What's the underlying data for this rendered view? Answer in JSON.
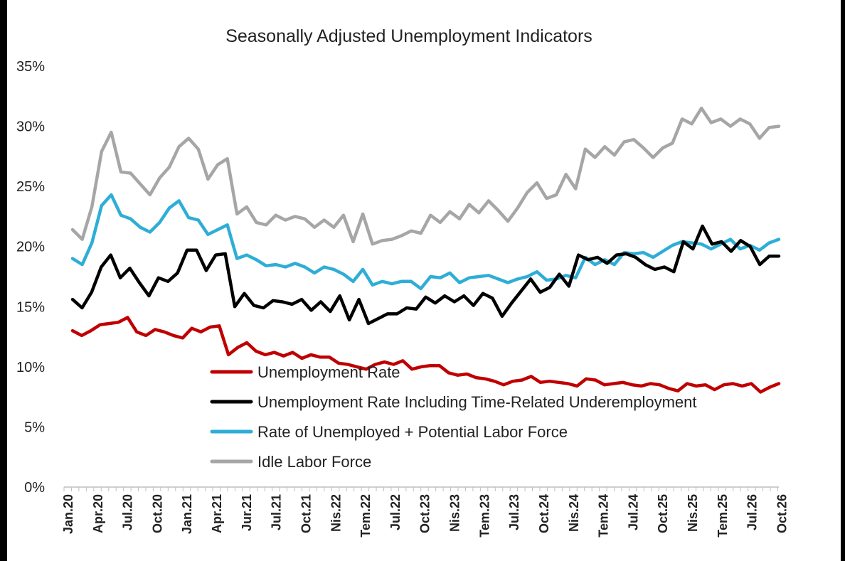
{
  "chart_data": {
    "type": "line",
    "title": "Seasonally Adjusted Unemployment Indicators",
    "xlabel": "",
    "ylabel": "",
    "ylim": [
      0,
      35
    ],
    "y_ticks": [
      0,
      5,
      10,
      15,
      20,
      25,
      30,
      35
    ],
    "y_tick_labels": [
      "0%",
      "5%",
      "10%",
      "15%",
      "20%",
      "25%",
      "30%",
      "35%"
    ],
    "x_tick_labels": [
      "Jan.20",
      "Apr.20",
      "Jul.20",
      "Oct.20",
      "Jan.21",
      "Apr.21",
      "Jur.21",
      "Jul.21",
      "Oct.21",
      "Nis.22",
      "Tem.22",
      "Jul.22",
      "Oct.23",
      "Nis.23",
      "Tem.23",
      "Jul.23",
      "Oct.24",
      "Nis.24",
      "Tem.24",
      "Jul.24",
      "Oct.25",
      "Nis.25",
      "Tem.25",
      "Jul.26",
      "Oct.26"
    ],
    "grid": false,
    "legend_position": "bottom-center",
    "series": [
      {
        "name": "Unemployment Rate",
        "color": "#c00000",
        "values": [
          13.0,
          12.6,
          13.0,
          13.5,
          13.6,
          13.7,
          14.1,
          12.9,
          12.6,
          13.1,
          12.9,
          12.6,
          12.4,
          13.2,
          12.9,
          13.3,
          13.4,
          11.0,
          11.6,
          12.0,
          11.3,
          11.0,
          11.2,
          10.9,
          11.2,
          10.7,
          11.0,
          10.8,
          10.8,
          10.3,
          10.2,
          10.0,
          9.8,
          10.2,
          10.4,
          10.2,
          10.5,
          9.8,
          10.0,
          10.1,
          10.1,
          9.5,
          9.3,
          9.4,
          9.1,
          9.0,
          8.8,
          8.5,
          8.8,
          8.9,
          9.2,
          8.7,
          8.8,
          8.7,
          8.6,
          8.4,
          9.0,
          8.9,
          8.5,
          8.6,
          8.7,
          8.5,
          8.4,
          8.6,
          8.5,
          8.2,
          8.0,
          8.6,
          8.4,
          8.5,
          8.1,
          8.5,
          8.6,
          8.4,
          8.6,
          7.9,
          8.3,
          8.6
        ]
      },
      {
        "name": "Unemployment Rate Including Time-Related Underemployment",
        "color": "#000000",
        "values": [
          15.6,
          14.9,
          16.2,
          18.3,
          19.3,
          17.4,
          18.2,
          17.0,
          15.9,
          17.4,
          17.1,
          17.8,
          19.7,
          19.7,
          18.0,
          19.3,
          19.4,
          15.0,
          16.1,
          15.1,
          14.9,
          15.5,
          15.4,
          15.2,
          15.6,
          14.7,
          15.4,
          14.6,
          15.9,
          13.9,
          15.6,
          13.6,
          14.0,
          14.4,
          14.4,
          14.9,
          14.8,
          15.8,
          15.3,
          15.9,
          15.4,
          15.9,
          15.1,
          16.1,
          15.7,
          14.2,
          15.3,
          16.3,
          17.3,
          16.2,
          16.6,
          17.7,
          16.7,
          19.3,
          18.9,
          19.1,
          18.6,
          19.3,
          19.4,
          19.1,
          18.5,
          18.1,
          18.3,
          17.9,
          20.4,
          19.8,
          21.7,
          20.2,
          20.4,
          19.6,
          20.5,
          20.0,
          18.5,
          19.2,
          19.2
        ]
      },
      {
        "name": "Rate of Unemployed + Potential Labor Force",
        "color": "#2eaed6",
        "values": [
          19.0,
          18.5,
          20.3,
          23.4,
          24.3,
          22.6,
          22.3,
          21.6,
          21.2,
          22.0,
          23.2,
          23.8,
          22.4,
          22.2,
          21.0,
          21.4,
          21.8,
          19.0,
          19.3,
          18.9,
          18.4,
          18.5,
          18.3,
          18.6,
          18.3,
          17.8,
          18.3,
          18.1,
          17.7,
          17.1,
          18.1,
          16.8,
          17.1,
          16.9,
          17.1,
          17.1,
          16.5,
          17.5,
          17.4,
          17.8,
          17.0,
          17.4,
          17.5,
          17.6,
          17.3,
          17.0,
          17.3,
          17.5,
          17.9,
          17.2,
          17.3,
          17.6,
          17.4,
          19.1,
          18.5,
          18.9,
          18.5,
          19.5,
          19.4,
          19.5,
          19.1,
          19.6,
          20.1,
          20.4,
          20.3,
          20.2,
          19.8,
          20.2,
          20.6,
          19.8,
          20.1,
          19.7,
          20.3,
          20.6
        ]
      },
      {
        "name": "Idle Labor Force",
        "color": "#a6a6a6",
        "values": [
          21.4,
          20.6,
          23.3,
          27.9,
          29.5,
          26.2,
          26.1,
          25.2,
          24.3,
          25.7,
          26.6,
          28.3,
          29.0,
          28.1,
          25.6,
          26.8,
          27.3,
          22.7,
          23.3,
          22.0,
          21.8,
          22.6,
          22.2,
          22.5,
          22.3,
          21.6,
          22.2,
          21.6,
          22.6,
          20.4,
          22.7,
          20.2,
          20.5,
          20.6,
          20.9,
          21.3,
          21.1,
          22.6,
          22.0,
          22.9,
          22.3,
          23.5,
          22.8,
          23.8,
          23.0,
          22.1,
          23.2,
          24.5,
          25.3,
          24.0,
          24.3,
          26.0,
          24.8,
          28.1,
          27.4,
          28.3,
          27.6,
          28.7,
          28.9,
          28.2,
          27.4,
          28.2,
          28.6,
          30.6,
          30.2,
          31.5,
          30.3,
          30.6,
          30.0,
          30.6,
          30.2,
          29.0,
          29.9,
          30.0
        ]
      }
    ]
  }
}
